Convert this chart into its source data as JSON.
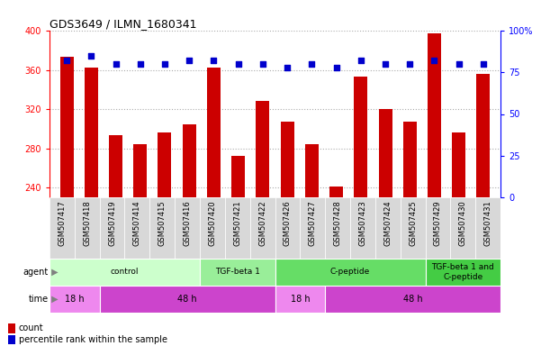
{
  "title": "GDS3649 / ILMN_1680341",
  "samples": [
    "GSM507417",
    "GSM507418",
    "GSM507419",
    "GSM507414",
    "GSM507415",
    "GSM507416",
    "GSM507420",
    "GSM507421",
    "GSM507422",
    "GSM507426",
    "GSM507427",
    "GSM507428",
    "GSM507423",
    "GSM507424",
    "GSM507425",
    "GSM507429",
    "GSM507430",
    "GSM507431"
  ],
  "counts": [
    373,
    362,
    293,
    284,
    296,
    304,
    362,
    272,
    328,
    307,
    284,
    241,
    353,
    320,
    307,
    397,
    296,
    356
  ],
  "percentile_ranks": [
    82,
    85,
    80,
    80,
    80,
    82,
    82,
    80,
    80,
    78,
    80,
    78,
    82,
    80,
    80,
    82,
    80,
    80
  ],
  "ylim_left": [
    230,
    400
  ],
  "ylim_right": [
    0,
    100
  ],
  "yticks_left": [
    240,
    280,
    320,
    360,
    400
  ],
  "yticks_right": [
    0,
    25,
    50,
    75,
    100
  ],
  "bar_color": "#cc0000",
  "scatter_color": "#0000cc",
  "bg_color": "#ffffff",
  "plot_bg_color": "#ffffff",
  "grid_color": "#aaaaaa",
  "agent_groups": [
    {
      "label": "control",
      "start": 0,
      "end": 6,
      "color": "#ccffcc"
    },
    {
      "label": "TGF-beta 1",
      "start": 6,
      "end": 9,
      "color": "#99ee99"
    },
    {
      "label": "C-peptide",
      "start": 9,
      "end": 15,
      "color": "#66dd66"
    },
    {
      "label": "TGF-beta 1 and\nC-peptide",
      "start": 15,
      "end": 18,
      "color": "#44cc44"
    }
  ],
  "time_groups": [
    {
      "label": "18 h",
      "start": 0,
      "end": 2,
      "color": "#ee88ee"
    },
    {
      "label": "48 h",
      "start": 2,
      "end": 9,
      "color": "#cc44cc"
    },
    {
      "label": "18 h",
      "start": 9,
      "end": 11,
      "color": "#ee88ee"
    },
    {
      "label": "48 h",
      "start": 11,
      "end": 18,
      "color": "#cc44cc"
    }
  ],
  "xtick_bg": "#dddddd",
  "label_fontsize": 7,
  "tick_fontsize": 7,
  "sample_fontsize": 6
}
